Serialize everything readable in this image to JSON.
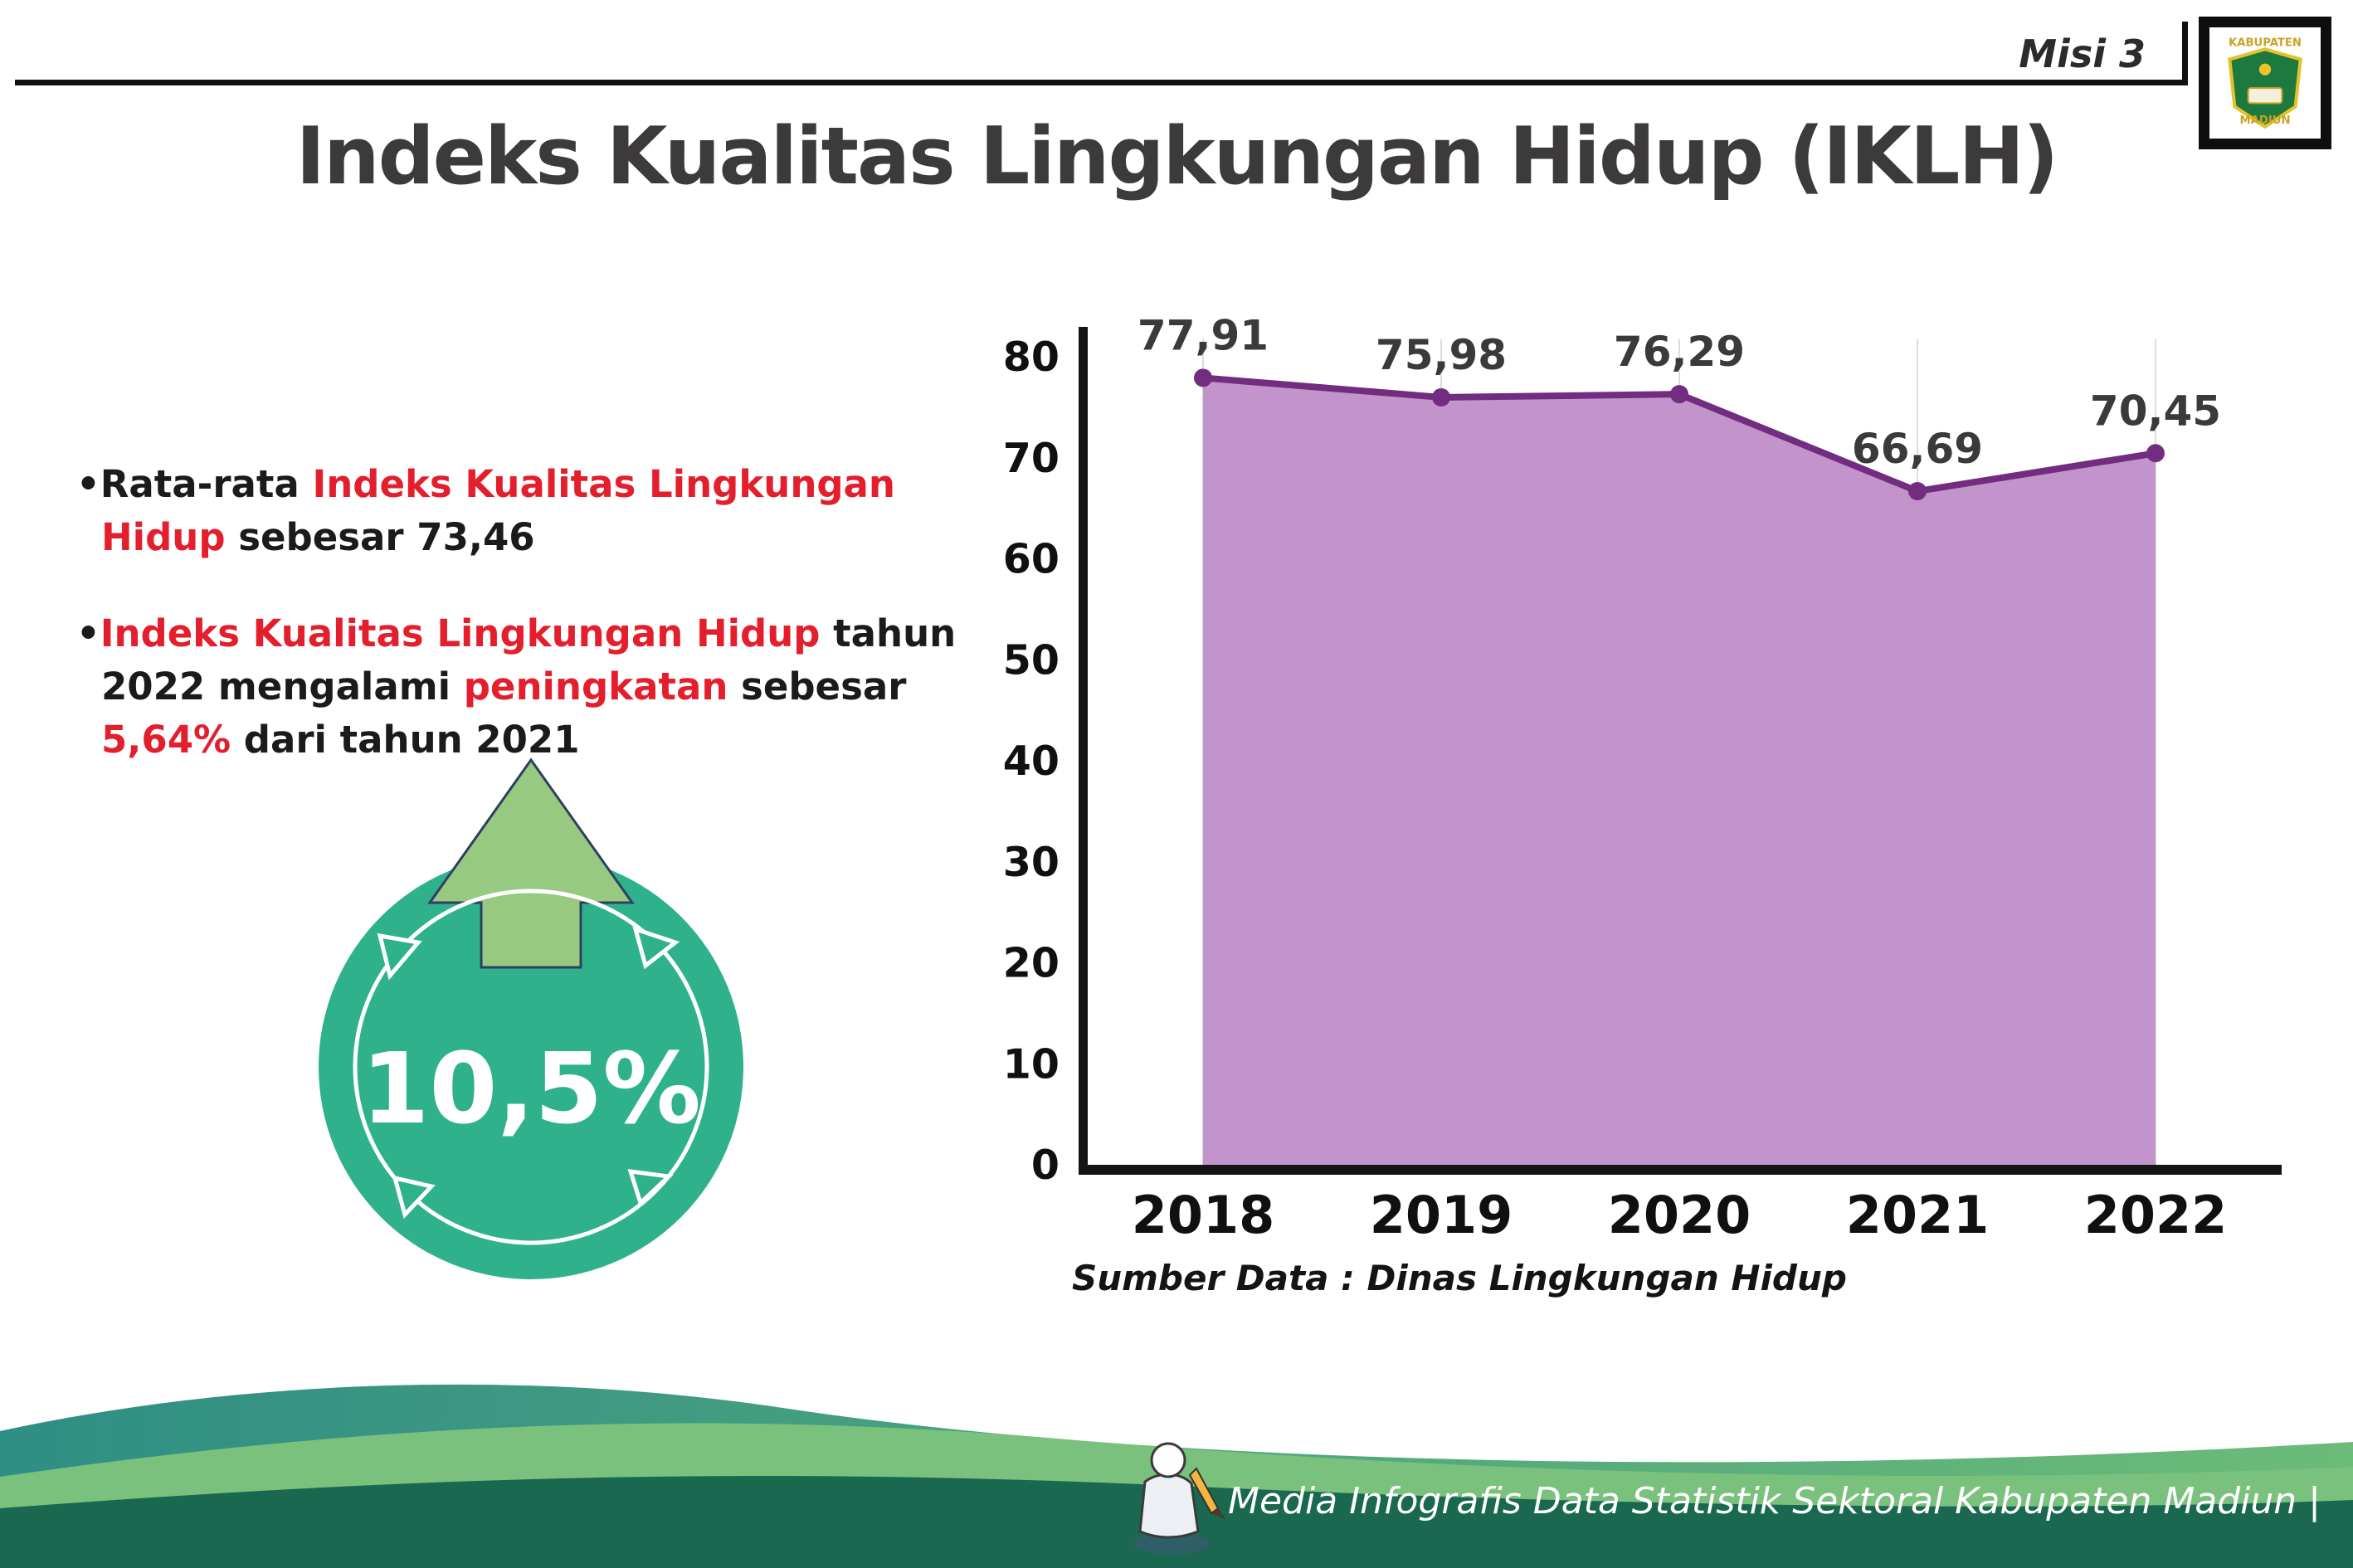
{
  "header": {
    "misi": "Misi 3",
    "logo": {
      "line1": "KABUPATEN",
      "line2": "MADIUN"
    }
  },
  "title": "Indeks Kualitas Lingkungan Hidup (IKLH)",
  "bullets": {
    "b1": {
      "seg1": "Rata-rata ",
      "seg2": "Indeks Kualitas Lingkungan Hidup",
      "seg3": " sebesar 73,46"
    },
    "b2": {
      "seg1": "Indeks Kualitas Lingkungan Hidup",
      "seg2": " tahun 2022 mengalami ",
      "seg3": "peningkatan",
      "seg4": " sebesar ",
      "seg5": "5,64%",
      "seg6": " dari tahun 2021"
    }
  },
  "badge": {
    "value": "10,5%"
  },
  "chart_data": {
    "type": "area",
    "title": "Indeks Kualitas Lingkungan Hidup (IKLH)",
    "categories": [
      "2018",
      "2019",
      "2020",
      "2021",
      "2022"
    ],
    "values": [
      77.91,
      75.98,
      76.29,
      66.69,
      70.45
    ],
    "value_labels": [
      "77,91",
      "75,98",
      "76,29",
      "66,69",
      "70,45"
    ],
    "ylim": [
      0,
      80
    ],
    "yticks": [
      0,
      10,
      20,
      30,
      40,
      50,
      60,
      70,
      80
    ],
    "grid": "vertical-light",
    "legend": "none",
    "line_color": "#722d80",
    "fill_color": "#c394cc",
    "axis_color": "#141414"
  },
  "source": "Sumber Data : Dinas Lingkungan Hidup",
  "footer": {
    "caption": "Media Infografis Data Statistik Sektoral Kabupaten Madiun |"
  },
  "colors": {
    "accent_red": "#e41f2d",
    "badge_circle": "#2fb28c",
    "badge_arrow": "#97c981",
    "footer_dark_green": "#1a6850",
    "footer_green": "#7ac17e",
    "footer_teal": "#35948a",
    "title_gray": "#3c3a3b"
  }
}
